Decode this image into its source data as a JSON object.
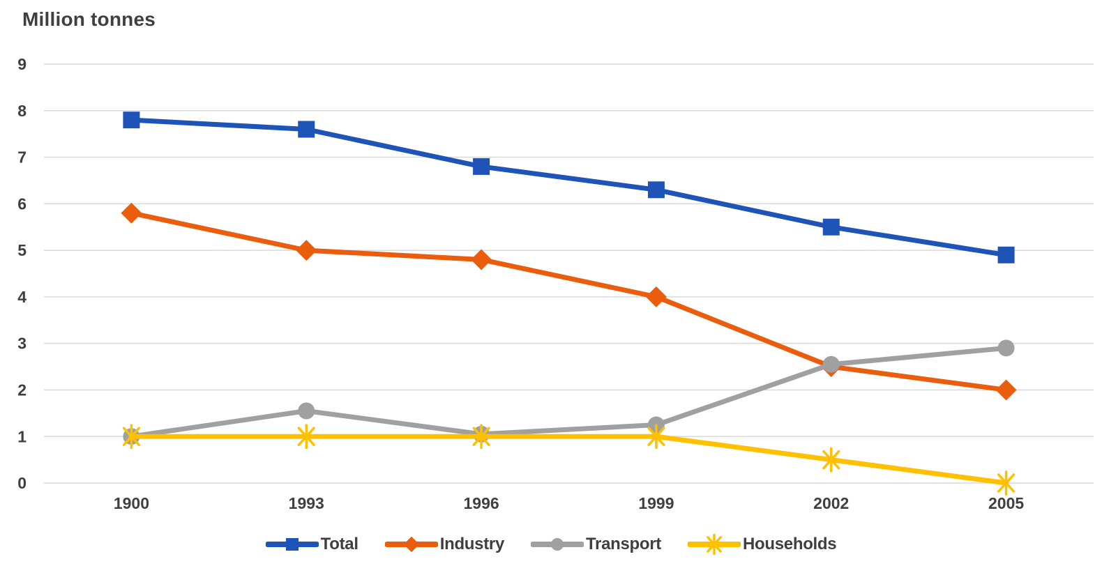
{
  "page": {
    "title": "Million tonnes"
  },
  "chart_data": {
    "type": "line",
    "title": "Million tonnes",
    "categories": [
      "1900",
      "1993",
      "1996",
      "1999",
      "2002",
      "2005"
    ],
    "series": [
      {
        "name": "Total",
        "color": "#1E53B8",
        "marker": "square",
        "values": [
          7.8,
          7.6,
          6.8,
          6.3,
          5.5,
          4.9
        ]
      },
      {
        "name": "Industry",
        "color": "#E95D0D",
        "marker": "diamond",
        "values": [
          5.8,
          5.0,
          4.8,
          4.0,
          2.5,
          2.0
        ]
      },
      {
        "name": "Transport",
        "color": "#A0A0A0",
        "marker": "circle",
        "values": [
          1.0,
          1.55,
          1.05,
          1.25,
          2.55,
          2.9
        ]
      },
      {
        "name": "Households",
        "color": "#FFC000",
        "marker": "asterisk",
        "values": [
          1.0,
          1.0,
          1.0,
          1.0,
          0.5,
          0.0
        ]
      }
    ],
    "xlabel": "",
    "ylabel": "Million tonnes",
    "ylim": [
      0,
      9
    ],
    "yticks": [
      0,
      1,
      2,
      3,
      4,
      5,
      6,
      7,
      8,
      9
    ],
    "grid": "horizontal",
    "legend_position": "bottom",
    "text_color": "#3F3F3F",
    "gridline_color": "#D9D9D9"
  }
}
